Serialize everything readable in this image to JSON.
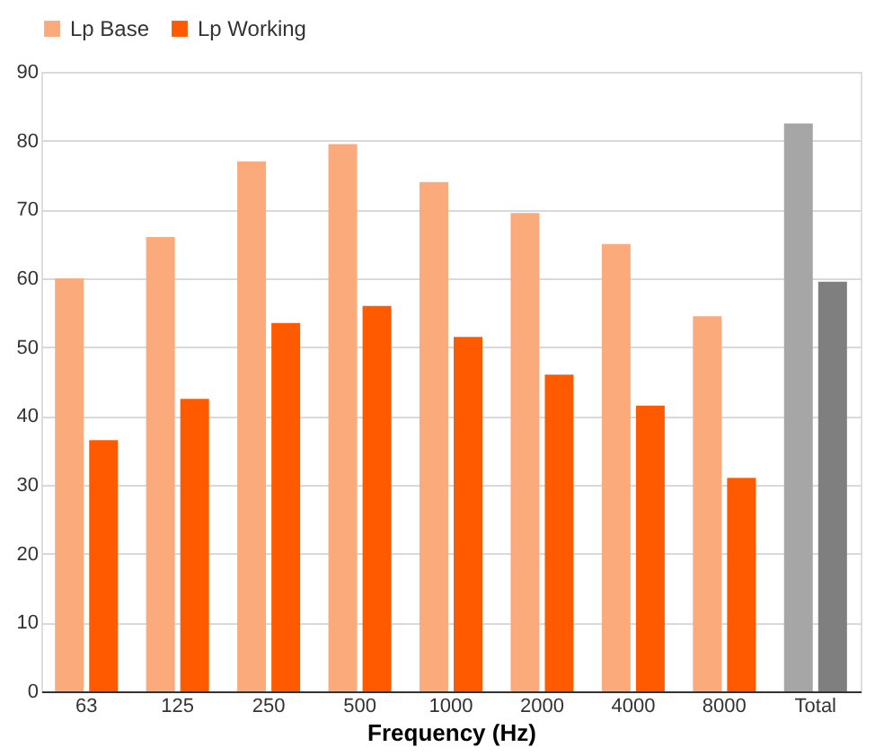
{
  "chart_data": {
    "type": "bar",
    "xlabel": "Frequency (Hz)",
    "categories": [
      "63",
      "125",
      "250",
      "500",
      "1000",
      "2000",
      "4000",
      "8000",
      "Total"
    ],
    "series": [
      {
        "name": "Lp Base",
        "color": "#fbaa7c",
        "colors": [
          "#fbaa7c",
          "#fbaa7c",
          "#fbaa7c",
          "#fbaa7c",
          "#fbaa7c",
          "#fbaa7c",
          "#fbaa7c",
          "#fbaa7c",
          "#a6a6a6"
        ],
        "values": [
          60,
          66,
          77,
          79.5,
          74,
          69.5,
          65,
          54.5,
          82.5
        ]
      },
      {
        "name": "Lp Working",
        "color": "#ff5a00",
        "colors": [
          "#ff5a00",
          "#ff5a00",
          "#ff5a00",
          "#ff5a00",
          "#ff5a00",
          "#ff5a00",
          "#ff5a00",
          "#ff5a00",
          "#7f7f7f"
        ],
        "values": [
          36.5,
          42.5,
          53.5,
          56,
          51.5,
          46,
          41.5,
          31,
          59.5
        ]
      }
    ],
    "ylim": [
      0,
      90
    ],
    "yticks": [
      0,
      10,
      20,
      30,
      40,
      50,
      60,
      70,
      80,
      90
    ],
    "grid": "y",
    "legend": "top"
  }
}
